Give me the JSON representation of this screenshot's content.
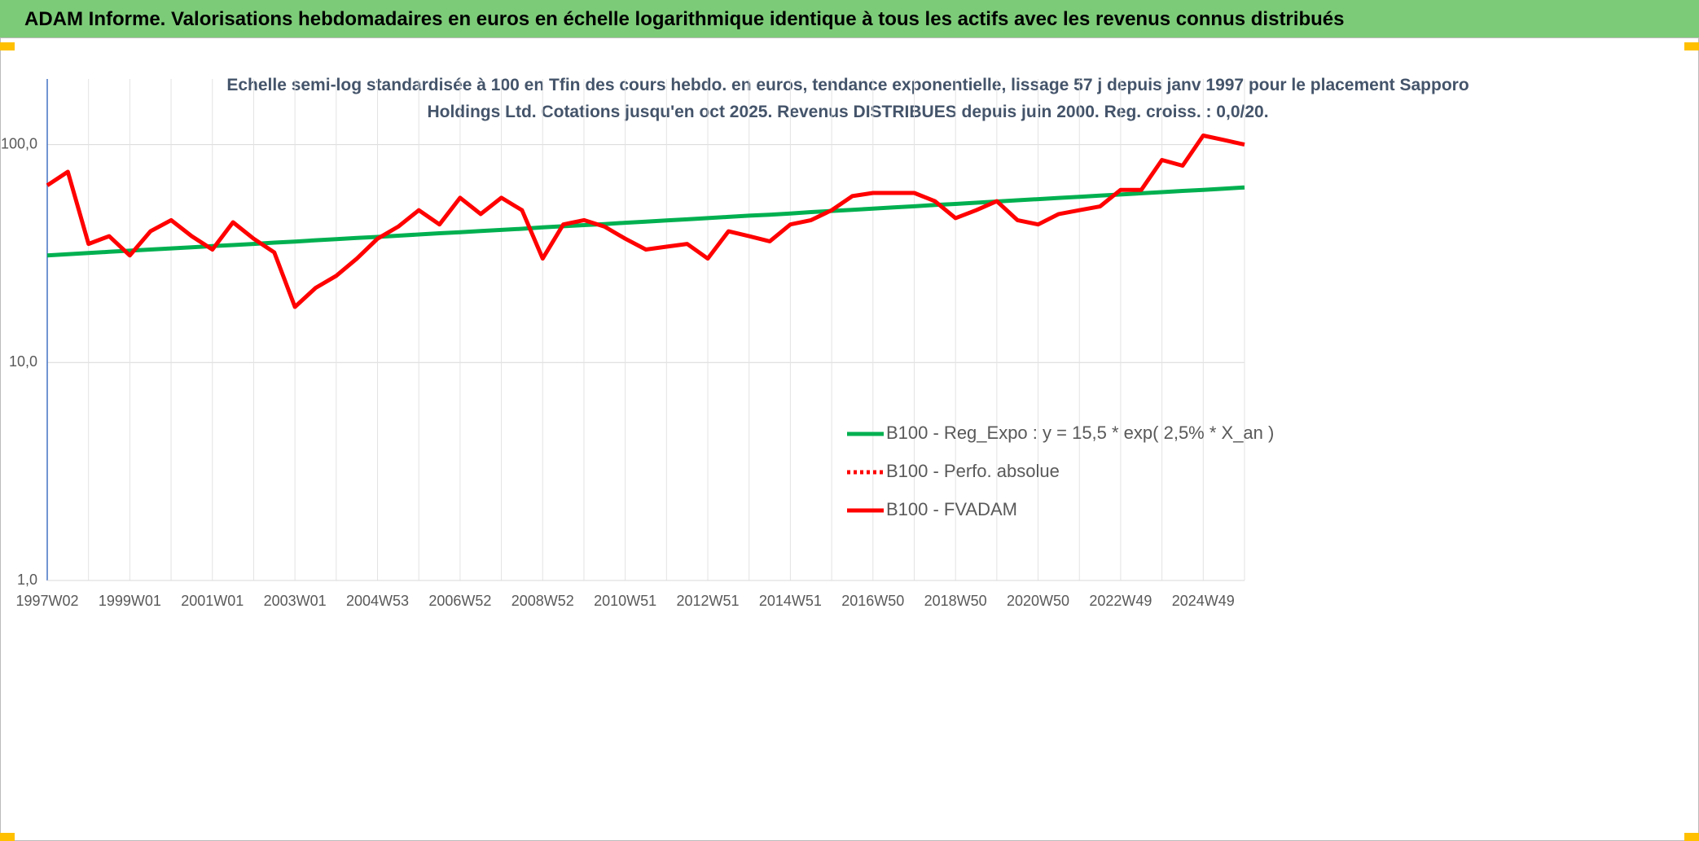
{
  "chart_data": {
    "type": "line",
    "title": "ADAM Informe. Valorisations hebdomadaires en euros en échelle logarithmique identique à tous les actifs avec les revenus connus distribués",
    "subtitle": "Echelle semi-log standardisée à 100 en Tfin des cours hebdo. en euros, tendance exponentielle, lissage 57 j depuis janv 1997 pour le placement Sapporo Holdings Ltd. Cotations jusqu'en oct 2025. Revenus DISTRIBUES depuis juin 2000. Reg. croiss. : 0,0/20.",
    "categories": [
      "1997W02",
      null,
      null,
      null,
      "1999W01",
      null,
      null,
      null,
      "2001W01",
      null,
      null,
      null,
      "2003W01",
      null,
      null,
      null,
      "2004W53",
      null,
      null,
      null,
      "2006W52",
      null,
      null,
      null,
      "2008W52",
      null,
      null,
      null,
      "2010W51",
      null,
      null,
      null,
      "2012W51",
      null,
      null,
      null,
      "2014W51",
      null,
      null,
      null,
      "2016W50",
      null,
      null,
      null,
      "2018W50",
      null,
      null,
      null,
      "2020W50",
      null,
      null,
      null,
      "2022W49",
      null,
      null,
      null,
      "2024W49",
      null,
      null
    ],
    "series": [
      {
        "name": "B100 - Reg_Expo : y = 15,5 * exp( 2,5% *  X_an )",
        "color": "#00b050",
        "style": "solid",
        "values": [
          31.0,
          31.4,
          31.8,
          32.2,
          32.6,
          33.0,
          33.4,
          33.8,
          34.2,
          34.6,
          35.0,
          35.5,
          35.9,
          36.4,
          36.8,
          37.3,
          37.7,
          38.2,
          38.7,
          39.2,
          39.6,
          40.1,
          40.6,
          41.1,
          41.7,
          42.2,
          42.7,
          43.2,
          43.8,
          44.3,
          44.9,
          45.4,
          46.0,
          46.6,
          47.2,
          47.7,
          48.3,
          49.0,
          49.6,
          50.2,
          50.8,
          51.5,
          52.1,
          52.8,
          53.4,
          54.1,
          54.8,
          55.5,
          56.2,
          56.9,
          57.6,
          58.3,
          59.0,
          59.8,
          60.5,
          61.3,
          62.0,
          62.8,
          63.6
        ]
      },
      {
        "name": "B100 - Perfo. absolue",
        "color": "#ff0000",
        "style": "dotted",
        "values": [
          null,
          null,
          null,
          null,
          null,
          null,
          null,
          null,
          null,
          null,
          null,
          null,
          null,
          null,
          null,
          null,
          null,
          null,
          null,
          null,
          null,
          null,
          null,
          null,
          null,
          null,
          null,
          null,
          null,
          null,
          null,
          null,
          null,
          null,
          null,
          null,
          null,
          null,
          null,
          null,
          null,
          null,
          null,
          null,
          null,
          null,
          null,
          null,
          null,
          null,
          null,
          null,
          null,
          null,
          null,
          null,
          null,
          null,
          null
        ]
      },
      {
        "name": "B100 - FVADAM",
        "color": "#ff0000",
        "style": "solid",
        "values": [
          65,
          75,
          35,
          38,
          31,
          40,
          45,
          38,
          33,
          44,
          37,
          32,
          18,
          22,
          25,
          30,
          37,
          42,
          50,
          43,
          57,
          48,
          57,
          50,
          30,
          43,
          45,
          42,
          37,
          33,
          34,
          35,
          30,
          40,
          38,
          36,
          43,
          45,
          50,
          58,
          60,
          60,
          60,
          55,
          46,
          50,
          55,
          45,
          43,
          48,
          50,
          52,
          62,
          62,
          85,
          80,
          110,
          105,
          100
        ]
      }
    ],
    "log": true,
    "ylim": [
      1,
      200
    ],
    "yticks": [
      {
        "value": 1,
        "label": "1,0"
      },
      {
        "value": 10,
        "label": "10,0"
      },
      {
        "value": 100,
        "label": "100,0"
      }
    ],
    "grid": true,
    "legend": "lower right"
  }
}
